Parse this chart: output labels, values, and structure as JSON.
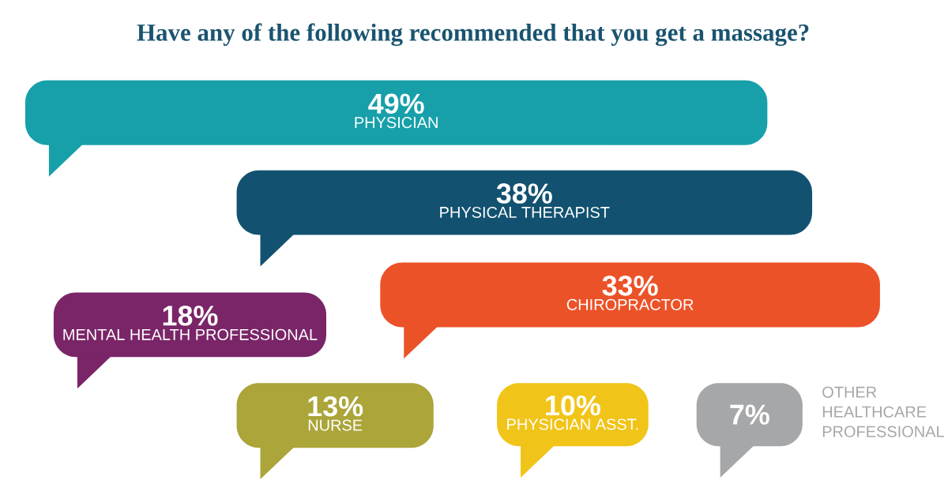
{
  "chart_data": {
    "type": "other",
    "title": "Have any of the following recommended that you get a massage?",
    "categories": [
      "PHYSICIAN",
      "PHYSICAL THERAPIST",
      "CHIROPRACTOR",
      "MENTAL HEALTH PROFESSIONAL",
      "NURSE",
      "PHYSICIAN ASST.",
      "OTHER HEALTHCARE PROFESSIONAL"
    ],
    "values": [
      49,
      38,
      33,
      18,
      13,
      10,
      7
    ],
    "value_labels": [
      "49%",
      "38%",
      "33%",
      "18%",
      "13%",
      "10%",
      "7%"
    ],
    "colors": [
      "#17a0aa",
      "#125270",
      "#ec5228",
      "#7a2568",
      "#aba53a",
      "#f1c419",
      "#a6a7a9"
    ]
  }
}
